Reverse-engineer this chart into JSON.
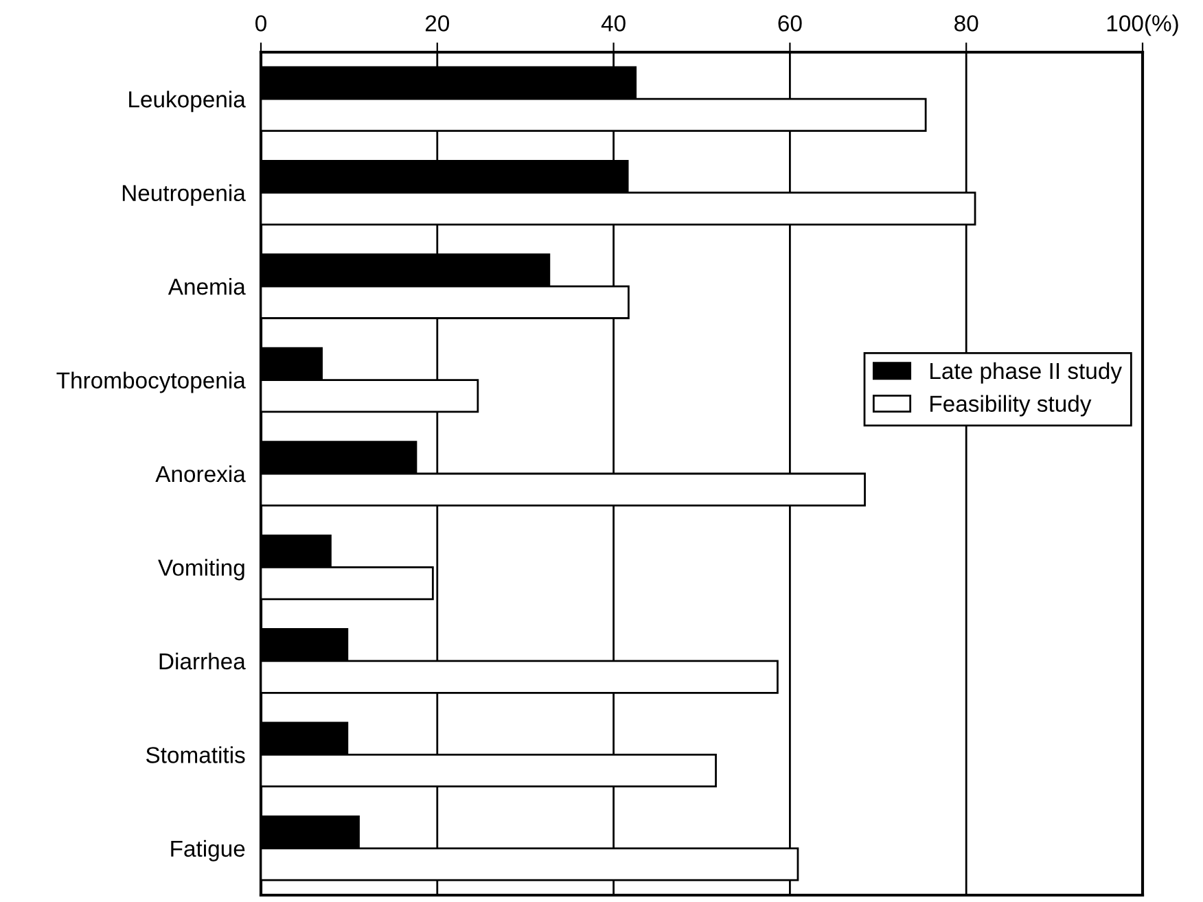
{
  "chart_data": {
    "type": "bar",
    "orientation": "horizontal",
    "categories": [
      "Leukopenia",
      "Neutropenia",
      "Anemia",
      "Thrombocytopenia",
      "Anorexia",
      "Vomiting",
      "Diarrhea",
      "Stomatitis",
      "Fatigue"
    ],
    "series": [
      {
        "name": "Late phase II study",
        "color": "#000000",
        "values": [
          42.5,
          41.6,
          32.7,
          6.9,
          17.6,
          7.9,
          9.8,
          9.8,
          11.1
        ]
      },
      {
        "name": "Feasibility study",
        "color": "#ffffff",
        "values": [
          75.4,
          81.0,
          41.7,
          24.6,
          68.5,
          19.5,
          58.6,
          51.6,
          60.9
        ]
      }
    ],
    "xlim": [
      0,
      100
    ],
    "xticks": [
      0,
      20,
      40,
      60,
      80,
      {
        "value": 100,
        "label": "100(%)"
      }
    ],
    "grid": "x",
    "legend": "right"
  }
}
